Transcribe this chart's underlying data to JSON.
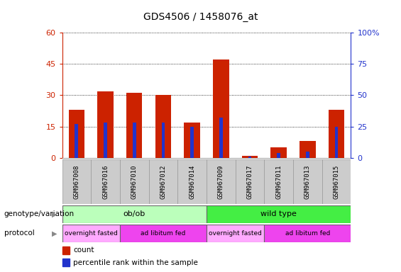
{
  "title": "GDS4506 / 1458076_at",
  "samples": [
    "GSM967008",
    "GSM967016",
    "GSM967010",
    "GSM967012",
    "GSM967014",
    "GSM967009",
    "GSM967017",
    "GSM967011",
    "GSM967013",
    "GSM967015"
  ],
  "count_values": [
    23,
    32,
    31,
    30,
    17,
    47,
    1,
    5,
    8,
    23
  ],
  "percentile_values": [
    27,
    28,
    28,
    28,
    25,
    32,
    1,
    4,
    5,
    25
  ],
  "ylim_left": [
    0,
    60
  ],
  "ylim_right": [
    0,
    100
  ],
  "yticks_left": [
    0,
    15,
    30,
    45,
    60
  ],
  "yticks_right": [
    0,
    25,
    50,
    75,
    100
  ],
  "bar_color_count": "#cc2200",
  "bar_color_pct": "#2233cc",
  "bar_width": 0.55,
  "pct_bar_width": 0.12,
  "genotype_groups": [
    {
      "label": "ob/ob",
      "start": 0,
      "end": 5,
      "color": "#bbffbb"
    },
    {
      "label": "wild type",
      "start": 5,
      "end": 10,
      "color": "#44ee44"
    }
  ],
  "protocol_groups": [
    {
      "label": "overnight fasted",
      "start": 0,
      "end": 2,
      "color": "#ffaaff"
    },
    {
      "label": "ad libitum fed",
      "start": 2,
      "end": 5,
      "color": "#ee44ee"
    },
    {
      "label": "overnight fasted",
      "start": 5,
      "end": 7,
      "color": "#ffaaff"
    },
    {
      "label": "ad libitum fed",
      "start": 7,
      "end": 10,
      "color": "#ee44ee"
    }
  ],
  "tick_color_left": "#cc2200",
  "tick_color_right": "#2233cc",
  "label_genotype": "genotype/variation",
  "label_protocol": "protocol",
  "legend_count": "count",
  "legend_pct": "percentile rank within the sample",
  "background_color": "#ffffff"
}
